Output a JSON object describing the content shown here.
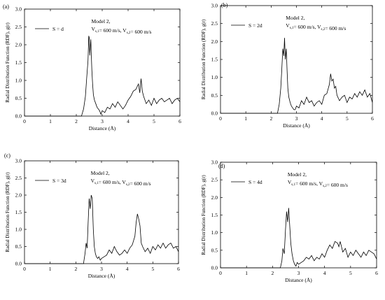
{
  "panels": [
    {
      "label": "(a)",
      "type": "line",
      "legend": "S = d",
      "annotation": {
        "line1": "Model 2,",
        "line2": "V",
        "sub1": "s,1",
        "mid": "= 600 m/s,  V",
        "sub2": "s,2",
        "end": "= 600 m/s"
      },
      "xlabel": "Distance (Å)",
      "ylabel": "Radial Distribution Function (RDF), g(r)",
      "xlim": [
        0,
        6
      ],
      "ylim": [
        0,
        3.0
      ],
      "xticks": [
        "0",
        "1",
        "2",
        "3",
        "4",
        "5",
        "6"
      ],
      "yticks": [
        "0.0",
        "0.5",
        "1.0",
        "1.5",
        "2.0",
        "2.5",
        "3.0"
      ],
      "series": [
        {
          "x": [
            0,
            2.2,
            2.28,
            2.35,
            2.4,
            2.45,
            2.48,
            2.5,
            2.52,
            2.56,
            2.6,
            2.63,
            2.66,
            2.7,
            2.75,
            2.8,
            2.85,
            2.9,
            2.95,
            3.0,
            3.1,
            3.2,
            3.3,
            3.4,
            3.5,
            3.6,
            3.7,
            3.8,
            3.9,
            4.0,
            4.1,
            4.2,
            4.3,
            4.4,
            4.45,
            4.5,
            4.55,
            4.6,
            4.7,
            4.8,
            4.9,
            5.0,
            5.1,
            5.2,
            5.3,
            5.4,
            5.5,
            5.6,
            5.7,
            5.8,
            5.9,
            6.0
          ],
          "y": [
            0,
            0,
            0.2,
            0.55,
            1.05,
            1.55,
            2.25,
            2.2,
            1.7,
            2.15,
            1.3,
            0.9,
            0.6,
            0.45,
            0.35,
            0.25,
            0.2,
            0.15,
            0.05,
            0.15,
            0.1,
            0.25,
            0.2,
            0.35,
            0.25,
            0.4,
            0.3,
            0.2,
            0.3,
            0.45,
            0.55,
            0.7,
            0.75,
            0.9,
            0.65,
            1.05,
            0.7,
            0.55,
            0.35,
            0.45,
            0.3,
            0.5,
            0.35,
            0.45,
            0.5,
            0.4,
            0.45,
            0.5,
            0.35,
            0.45,
            0.5,
            0.4
          ]
        }
      ]
    },
    {
      "label": "(b)",
      "type": "line",
      "legend": "S = 2d",
      "annotation": {
        "line1": "Model 2,",
        "line2": "V",
        "sub1": "s,1",
        "mid": "= 600 m/s,  V",
        "sub2": "s,2",
        "end": "= 600 m/s"
      },
      "xlabel": "Distance (Å)",
      "ylabel": "Radial Distribution Function (RDF), g(r)",
      "xlim": [
        0,
        6
      ],
      "ylim": [
        0,
        3.0
      ],
      "xticks": [
        "0",
        "1",
        "2",
        "3",
        "4",
        "5",
        "6"
      ],
      "yticks": [
        "0.0",
        "0.5",
        "1.0",
        "1.5",
        "2.0",
        "2.5",
        "3.0"
      ],
      "series": [
        {
          "x": [
            0,
            2.25,
            2.32,
            2.38,
            2.42,
            2.46,
            2.5,
            2.53,
            2.56,
            2.6,
            2.63,
            2.66,
            2.7,
            2.75,
            2.8,
            2.85,
            2.9,
            2.95,
            3.0,
            3.1,
            3.2,
            3.3,
            3.4,
            3.5,
            3.6,
            3.7,
            3.8,
            3.9,
            4.0,
            4.1,
            4.2,
            4.3,
            4.35,
            4.4,
            4.45,
            4.5,
            4.55,
            4.6,
            4.7,
            4.8,
            4.9,
            5.0,
            5.1,
            5.2,
            5.3,
            5.4,
            5.5,
            5.6,
            5.7,
            5.8,
            5.9,
            6.0
          ],
          "y": [
            0,
            0,
            0.25,
            0.7,
            1.2,
            1.8,
            1.6,
            2.1,
            1.5,
            1.8,
            1.2,
            0.7,
            0.45,
            0.3,
            0.2,
            0.15,
            0.1,
            0.1,
            0.2,
            0.15,
            0.35,
            0.25,
            0.45,
            0.3,
            0.35,
            0.2,
            0.3,
            0.35,
            0.25,
            0.5,
            0.55,
            0.8,
            1.1,
            0.9,
            0.95,
            0.7,
            0.75,
            0.5,
            0.35,
            0.45,
            0.5,
            0.3,
            0.45,
            0.4,
            0.55,
            0.45,
            0.6,
            0.5,
            0.65,
            0.45,
            0.55,
            0.3
          ]
        }
      ]
    },
    {
      "label": "(c)",
      "type": "line",
      "legend": "S = 3d",
      "annotation": {
        "line1": "Model 2,",
        "line2": "V",
        "sub1": "s,1",
        "mid": "= 600 m/s,  V",
        "sub2": "s,2",
        "end": "= 600 m/s"
      },
      "xlabel": "Distance (Å)",
      "ylabel": "Radial Distribution Function (RDF), g(r)",
      "xlim": [
        0,
        6
      ],
      "ylim": [
        0,
        3.0
      ],
      "xticks": [
        "0",
        "1",
        "2",
        "3",
        "4",
        "5",
        "6"
      ],
      "yticks": [
        "0.0",
        "0.5",
        "1.0",
        "1.5",
        "2.0",
        "2.5",
        "3.0"
      ],
      "series": [
        {
          "x": [
            0,
            2.3,
            2.36,
            2.4,
            2.44,
            2.48,
            2.52,
            2.56,
            2.6,
            2.64,
            2.68,
            2.72,
            2.76,
            2.8,
            2.85,
            2.9,
            2.95,
            3.0,
            3.1,
            3.2,
            3.3,
            3.4,
            3.5,
            3.6,
            3.7,
            3.8,
            3.9,
            4.0,
            4.1,
            4.2,
            4.3,
            4.35,
            4.4,
            4.45,
            4.5,
            4.55,
            4.6,
            4.7,
            4.8,
            4.9,
            5.0,
            5.1,
            5.2,
            5.3,
            5.4,
            5.5,
            5.6,
            5.7,
            5.8,
            5.9,
            6.0
          ],
          "y": [
            0,
            0,
            0.3,
            0.6,
            0.45,
            1.2,
            1.9,
            1.6,
            2.0,
            1.9,
            1.0,
            0.5,
            0.3,
            0.2,
            0.15,
            0.2,
            0.1,
            0.15,
            0.2,
            0.25,
            0.4,
            0.3,
            0.5,
            0.35,
            0.25,
            0.3,
            0.4,
            0.3,
            0.45,
            0.55,
            0.8,
            1.2,
            1.45,
            1.3,
            1.1,
            0.6,
            0.5,
            0.35,
            0.45,
            0.3,
            0.5,
            0.4,
            0.55,
            0.45,
            0.6,
            0.45,
            0.55,
            0.6,
            0.45,
            0.5,
            0.35
          ]
        }
      ]
    },
    {
      "label": "(d)",
      "type": "line",
      "legend": "S = 4d",
      "annotation": {
        "line1": "Model 2,",
        "line2": "V",
        "sub1": "s,1",
        "mid": "= 600 m/s,  V",
        "sub2": "s,2",
        "end": "= 600 m/s"
      },
      "xlabel": "Distance (Å)",
      "ylabel": "Radial Distribution Function (RDF), g(r)",
      "xlim": [
        0,
        6
      ],
      "ylim": [
        0,
        3.0
      ],
      "xticks": [
        "0",
        "1",
        "2",
        "3",
        "4",
        "5",
        "6"
      ],
      "yticks": [
        "0.0",
        "0.5",
        "1.0",
        "1.5",
        "2.0",
        "2.5",
        "3.0"
      ],
      "series": [
        {
          "x": [
            0,
            2.3,
            2.36,
            2.4,
            2.45,
            2.5,
            2.54,
            2.58,
            2.62,
            2.66,
            2.7,
            2.75,
            2.8,
            2.85,
            2.9,
            2.95,
            3.0,
            3.1,
            3.2,
            3.3,
            3.4,
            3.5,
            3.6,
            3.7,
            3.8,
            3.9,
            4.0,
            4.1,
            4.2,
            4.3,
            4.4,
            4.5,
            4.55,
            4.6,
            4.7,
            4.8,
            4.9,
            5.0,
            5.1,
            5.2,
            5.3,
            5.4,
            5.5,
            5.6,
            5.7,
            5.8,
            5.9,
            6.0
          ],
          "y": [
            0,
            0,
            0.2,
            0.55,
            0.4,
            1.1,
            1.6,
            1.3,
            1.7,
            1.2,
            0.7,
            0.4,
            0.2,
            0.1,
            0.05,
            0.15,
            0.1,
            0.15,
            0.2,
            0.3,
            0.25,
            0.35,
            0.2,
            0.3,
            0.25,
            0.4,
            0.3,
            0.5,
            0.65,
            0.55,
            0.75,
            0.7,
            0.6,
            0.75,
            0.45,
            0.55,
            0.3,
            0.45,
            0.35,
            0.5,
            0.4,
            0.3,
            0.45,
            0.35,
            0.5,
            0.45,
            0.4,
            0.25
          ]
        }
      ]
    }
  ],
  "chart_data": [
    {
      "type": "line",
      "legend": "S = d",
      "xlabel": "Distance (Å)",
      "ylabel": "Radial Distribution Function (RDF), g(r)",
      "xlim": [
        0,
        6
      ],
      "ylim": [
        0,
        3.0
      ],
      "peaks_note_values": [
        2.25,
        1.05
      ]
    },
    {
      "type": "line",
      "legend": "S = 2d",
      "xlabel": "Distance (Å)",
      "ylabel": "Radial Distribution Function (RDF), g(r)",
      "xlim": [
        0,
        6
      ],
      "ylim": [
        0,
        3.0
      ],
      "peaks_note_values": [
        2.1,
        1.1
      ]
    },
    {
      "type": "line",
      "legend": "S = 3d",
      "xlabel": "Distance (Å)",
      "ylabel": "Radial Distribution Function (RDF), g(r)",
      "xlim": [
        0,
        6
      ],
      "ylim": [
        0,
        3.0
      ],
      "peaks_note_values": [
        2.0,
        1.45
      ]
    },
    {
      "type": "line",
      "legend": "S = 4d",
      "xlabel": "Distance (Å)",
      "ylabel": "Radial Distribution Function (RDF), g(r)",
      "xlim": [
        0,
        6
      ],
      "ylim": [
        0,
        3.0
      ],
      "peaks_note_values": [
        1.7,
        0.75
      ]
    }
  ]
}
